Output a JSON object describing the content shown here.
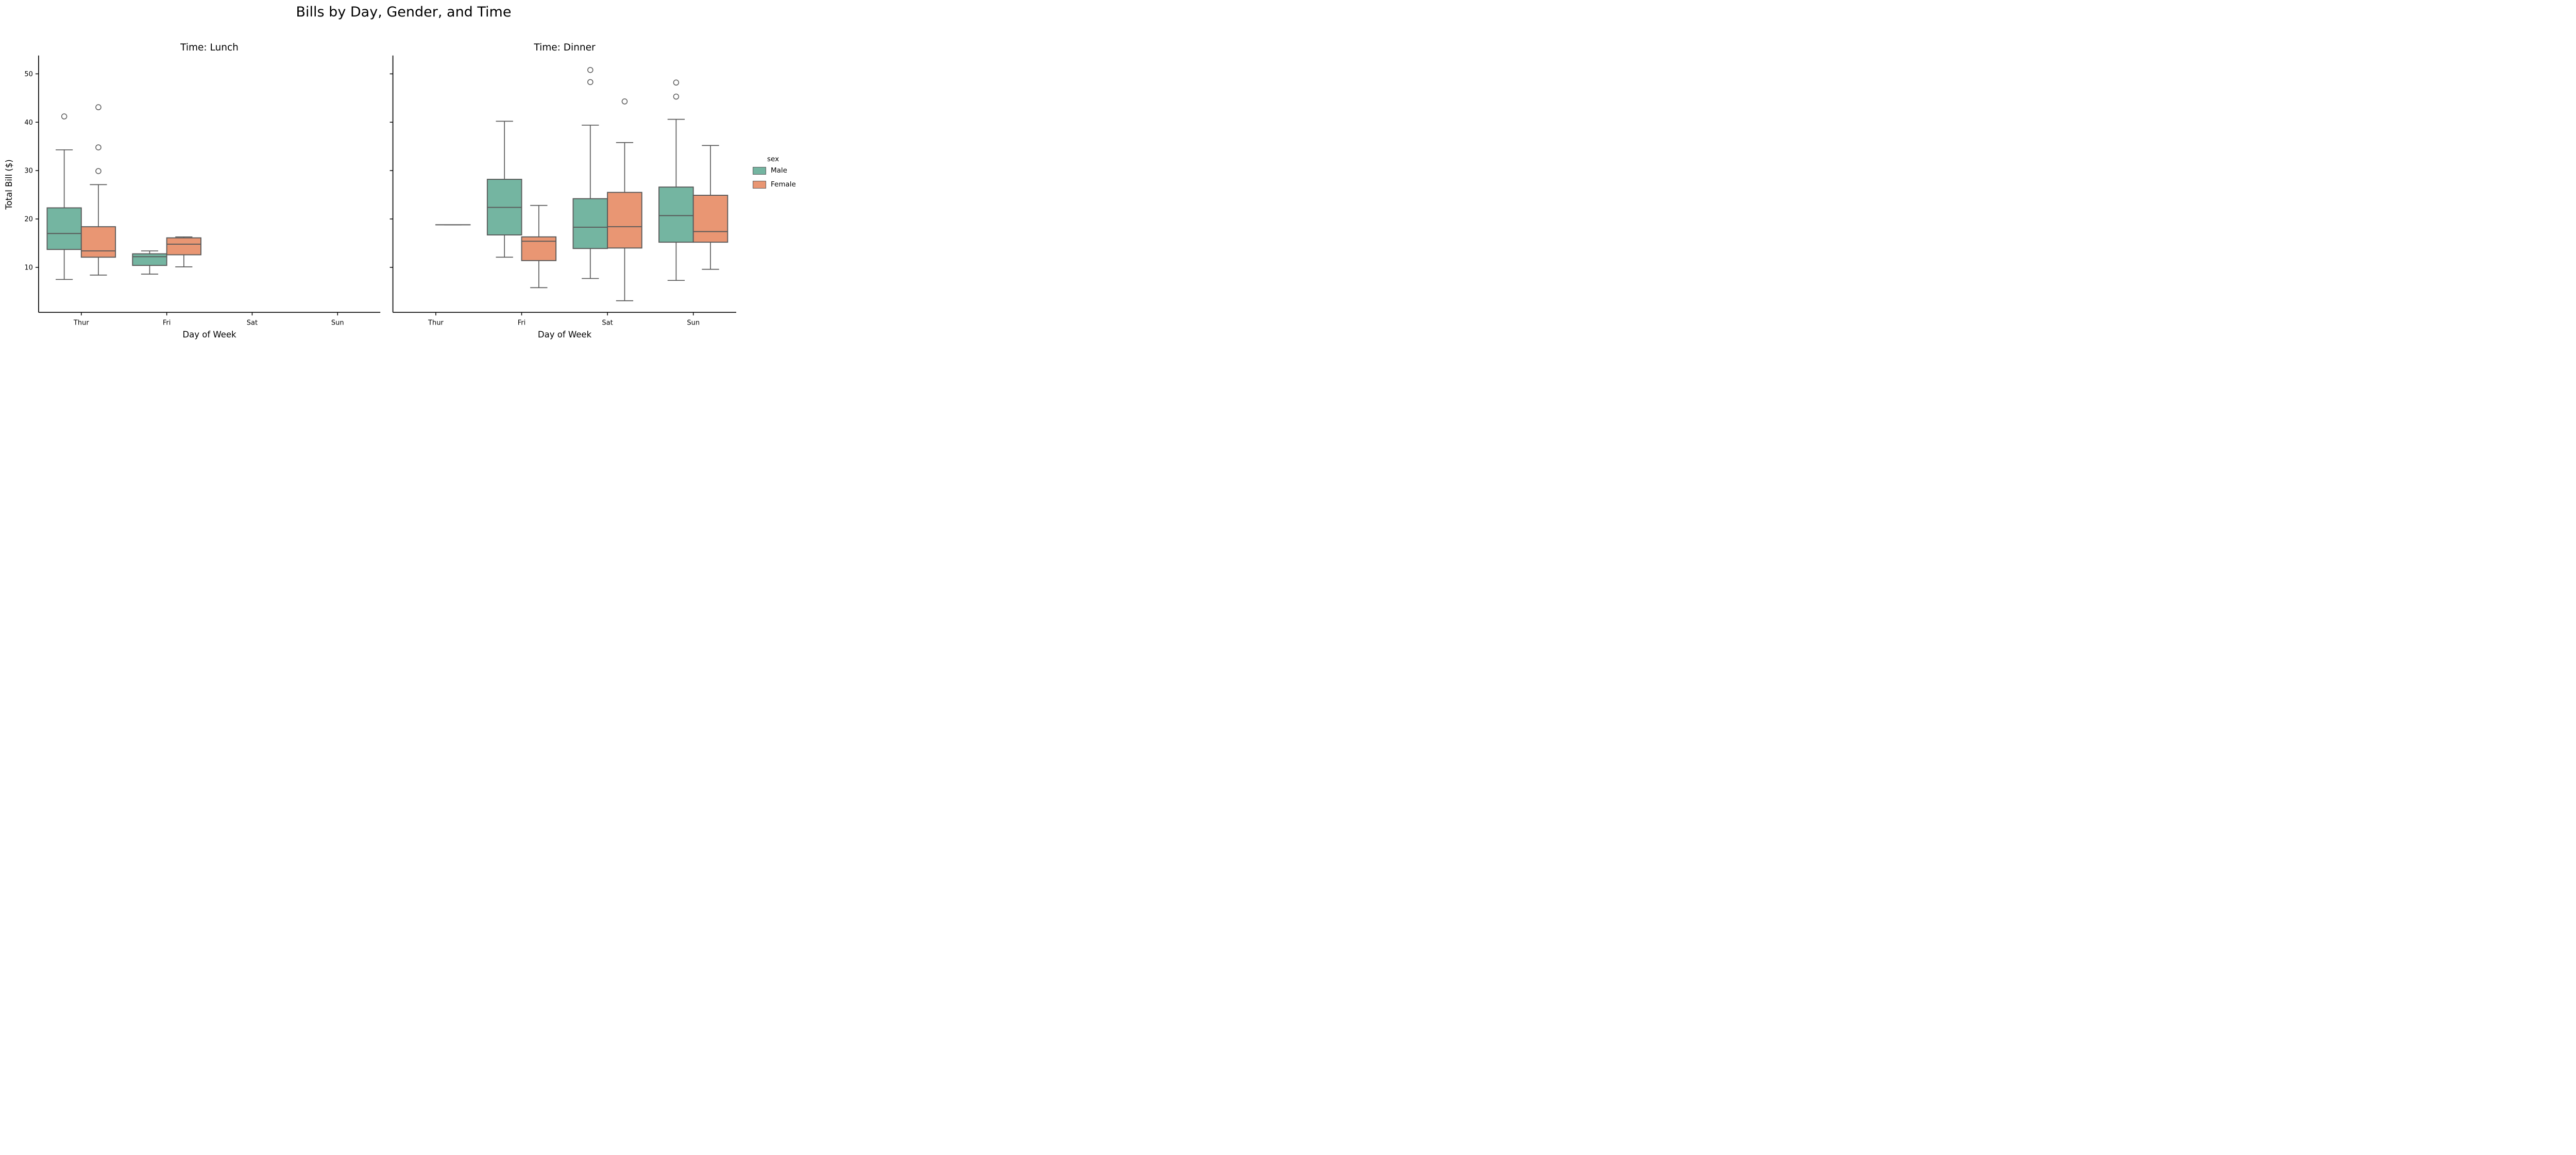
{
  "figure": {
    "title": "Bills by Day, Gender, and Time",
    "ylabel": "Total Bill ($)",
    "xlabel": "Day of Week"
  },
  "legend": {
    "title": "sex",
    "entries": [
      {
        "label": "Male",
        "color": "#74b5a1"
      },
      {
        "label": "Female",
        "color": "#e99673"
      }
    ]
  },
  "style_colors": {
    "box_edge": "#595959",
    "axis": "#000000",
    "male_fill": "#74b5a1",
    "female_fill": "#e99673"
  },
  "chart_data": [
    {
      "type": "boxplot",
      "facet_title": "Time: Lunch",
      "categories": [
        "Thur",
        "Fri",
        "Sat",
        "Sun"
      ],
      "xlabel": "Day of Week",
      "ylabel": "Total Bill ($)",
      "ylim": [
        0.7,
        53.8
      ],
      "yticks": [
        10,
        20,
        30,
        40,
        50
      ],
      "show_ytick_labels": true,
      "series": [
        {
          "name": "Male",
          "boxes": [
            {
              "whislo": 7.5,
              "q1": 13.7,
              "med": 17.0,
              "q3": 22.3,
              "whishi": 34.3,
              "outliers": [
                41.2
              ]
            },
            {
              "whislo": 8.6,
              "q1": 10.4,
              "med": 12.2,
              "q3": 12.8,
              "whishi": 13.4,
              "outliers": []
            },
            null,
            null
          ]
        },
        {
          "name": "Female",
          "boxes": [
            {
              "whislo": 8.4,
              "q1": 12.1,
              "med": 13.4,
              "q3": 18.4,
              "whishi": 27.1,
              "outliers": [
                43.1,
                34.8,
                29.9
              ]
            },
            {
              "whislo": 10.1,
              "q1": 12.6,
              "med": 14.8,
              "q3": 16.1,
              "whishi": 16.3,
              "outliers": []
            },
            null,
            null
          ]
        }
      ]
    },
    {
      "type": "boxplot",
      "facet_title": "Time: Dinner",
      "categories": [
        "Thur",
        "Fri",
        "Sat",
        "Sun"
      ],
      "xlabel": "Day of Week",
      "ylabel": "Total Bill ($)",
      "ylim": [
        0.7,
        53.8
      ],
      "yticks": [
        10,
        20,
        30,
        40,
        50
      ],
      "show_ytick_labels": false,
      "series": [
        {
          "name": "Male",
          "boxes": [
            null,
            {
              "whislo": 12.1,
              "q1": 16.7,
              "med": 22.4,
              "q3": 28.2,
              "whishi": 40.2,
              "outliers": []
            },
            {
              "whislo": 7.7,
              "q1": 13.9,
              "med": 18.3,
              "q3": 24.2,
              "whishi": 39.4,
              "outliers": [
                48.3,
                50.8
              ]
            },
            {
              "whislo": 7.3,
              "q1": 15.2,
              "med": 20.7,
              "q3": 26.6,
              "whishi": 40.6,
              "outliers": [
                45.3,
                48.2
              ]
            }
          ]
        },
        {
          "name": "Female",
          "boxes": [
            {
              "whislo": 18.8,
              "q1": 18.8,
              "med": 18.8,
              "q3": 18.8,
              "whishi": 18.8,
              "outliers": []
            },
            {
              "whislo": 5.8,
              "q1": 11.4,
              "med": 15.4,
              "q3": 16.3,
              "whishi": 22.8,
              "outliers": []
            },
            {
              "whislo": 3.1,
              "q1": 14.0,
              "med": 18.4,
              "q3": 25.5,
              "whishi": 35.8,
              "outliers": [
                44.3
              ]
            },
            {
              "whislo": 9.6,
              "q1": 15.2,
              "med": 17.4,
              "q3": 24.9,
              "whishi": 35.2,
              "outliers": []
            }
          ]
        }
      ]
    }
  ]
}
